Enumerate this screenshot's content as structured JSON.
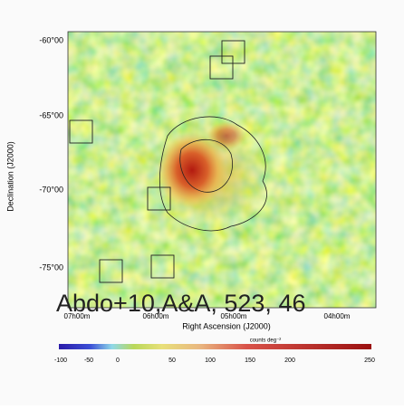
{
  "figure": {
    "y_axis_label": "Declination (J2000)",
    "x_axis_label": "Right Ascension (J2000)",
    "y_ticks": [
      "-60°00",
      "-65°00",
      "-70°00",
      "-75°00"
    ],
    "x_ticks": [
      "07h00m",
      "06h00m",
      "05h00m",
      "04h00m"
    ],
    "colorbar_label": "counts deg⁻²",
    "colorbar_ticks": [
      "-100",
      "-50",
      "0",
      "50",
      "100",
      "150",
      "200",
      "250"
    ],
    "caption": "Abdo+10,A&A, 523, 46"
  }
}
